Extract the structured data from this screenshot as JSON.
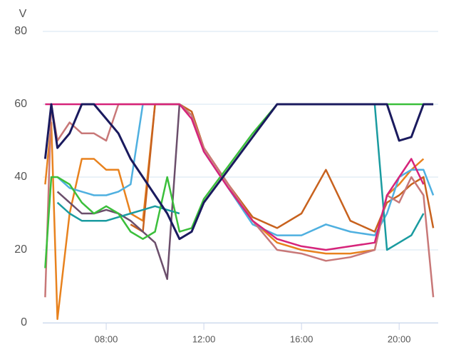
{
  "chart_data": {
    "type": "line",
    "y_label": "V",
    "x": [
      5.5,
      5.75,
      6,
      6.5,
      7,
      7.5,
      8,
      8.5,
      9,
      9.5,
      10,
      10.5,
      11,
      11.5,
      12,
      13,
      14,
      15,
      16,
      17,
      18,
      19,
      19.5,
      20,
      20.5,
      21,
      21.4
    ],
    "xlim": [
      5.4,
      21.6
    ],
    "xticks": [
      {
        "value": 8,
        "label": "08:00"
      },
      {
        "value": 12,
        "label": "12:00"
      },
      {
        "value": 16,
        "label": "16:00"
      },
      {
        "value": 20,
        "label": "20:00"
      }
    ],
    "ylim": [
      0,
      80
    ],
    "yticks": [
      0,
      20,
      40,
      60,
      80
    ],
    "grid": true,
    "series": [
      {
        "color": "#e8821e",
        "values": [
          38,
          55,
          1,
          30,
          45,
          45,
          42,
          42,
          30,
          28,
          60,
          60,
          60,
          57,
          48,
          38,
          28,
          22,
          20,
          19,
          19,
          20,
          35,
          38,
          42,
          45,
          null
        ]
      },
      {
        "color": "#c8621e",
        "values": [
          null,
          null,
          null,
          null,
          null,
          null,
          null,
          null,
          27,
          25,
          60,
          60,
          60,
          58,
          48,
          38,
          29,
          26,
          30,
          42,
          28,
          25,
          33,
          35,
          38,
          40,
          26
        ]
      },
      {
        "color": "#4fb0e0",
        "values": [
          null,
          null,
          40,
          37,
          36,
          35,
          35,
          36,
          38,
          60,
          60,
          60,
          60,
          57,
          47,
          37,
          27,
          24,
          24,
          27,
          25,
          24,
          30,
          40,
          42,
          42,
          35
        ]
      },
      {
        "color": "#c87878",
        "values": [
          7,
          60,
          50,
          55,
          52,
          52,
          50,
          60,
          60,
          60,
          60,
          60,
          60,
          57,
          48,
          38,
          28,
          20,
          19,
          17,
          18,
          20,
          35,
          33,
          40,
          35,
          7
        ]
      },
      {
        "color": "#6b4e6b",
        "values": [
          null,
          null,
          36,
          33,
          30,
          30,
          31,
          30,
          28,
          25,
          22,
          12,
          60,
          null,
          null,
          null,
          null,
          null,
          null,
          null,
          null,
          null,
          null,
          null,
          null,
          null,
          null
        ]
      },
      {
        "color": "#1a9ba0",
        "values": [
          null,
          null,
          33,
          30,
          28,
          28,
          28,
          29,
          30,
          31,
          32,
          31,
          30,
          null,
          null,
          null,
          null,
          null,
          null,
          null,
          null,
          60,
          20,
          22,
          24,
          30,
          null
        ]
      },
      {
        "color": "#3bbf3b",
        "values": [
          15,
          40,
          40,
          38,
          33,
          30,
          32,
          30,
          25,
          23,
          25,
          40,
          25,
          26,
          34,
          43,
          52,
          60,
          60,
          60,
          60,
          60,
          60,
          60,
          60,
          60,
          60
        ]
      },
      {
        "color": "#d6247a",
        "values": [
          60,
          60,
          60,
          60,
          60,
          60,
          60,
          60,
          60,
          60,
          60,
          60,
          60,
          56,
          47,
          37,
          28,
          23,
          21,
          20,
          21,
          22,
          35,
          40,
          45,
          38,
          null
        ]
      },
      {
        "color": "#1a1a5e",
        "values": [
          45,
          60,
          48,
          52,
          60,
          60,
          56,
          52,
          45,
          40,
          35,
          30,
          23,
          25,
          33,
          42,
          51,
          60,
          60,
          60,
          60,
          60,
          60,
          50,
          51,
          60,
          60
        ]
      }
    ]
  }
}
